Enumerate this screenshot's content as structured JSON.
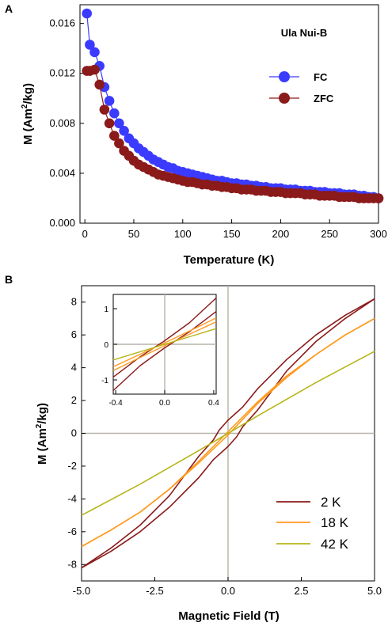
{
  "chart_data": [
    {
      "type": "scatter",
      "panel_label": "A",
      "title": "Ula Nui-B",
      "xlabel": "Temperature (K)",
      "ylabel_main": "M (Am",
      "ylabel_sup": "2",
      "ylabel_end": "/kg)",
      "xlim": [
        -5,
        300
      ],
      "ylim": [
        0,
        0.0175
      ],
      "xticks": [
        "0",
        "50",
        "100",
        "150",
        "200",
        "250",
        "300"
      ],
      "yticks": [
        "0.000",
        "0.004",
        "0.008",
        "0.012",
        "0.016"
      ],
      "grid": false,
      "legend_position": "right",
      "series": [
        {
          "name": "FC",
          "color": "#3b3bff",
          "x": [
            2,
            5,
            10,
            15,
            20,
            25,
            30,
            35,
            40,
            45,
            50,
            55,
            60,
            65,
            70,
            75,
            80,
            85,
            90,
            95,
            100,
            105,
            110,
            115,
            120,
            125,
            130,
            135,
            140,
            145,
            150,
            155,
            160,
            165,
            170,
            175,
            180,
            185,
            190,
            195,
            200,
            205,
            210,
            215,
            220,
            225,
            230,
            235,
            240,
            245,
            250,
            255,
            260,
            265,
            270,
            275,
            280,
            285,
            290,
            295,
            300
          ],
          "y": [
            0.0168,
            0.0143,
            0.0137,
            0.0126,
            0.0109,
            0.0098,
            0.0088,
            0.008,
            0.0074,
            0.0068,
            0.0064,
            0.006,
            0.0057,
            0.0054,
            0.0051,
            0.0049,
            0.0047,
            0.0045,
            0.0044,
            0.0042,
            0.0041,
            0.004,
            0.0039,
            0.0038,
            0.0037,
            0.0036,
            0.0035,
            0.0034,
            0.0034,
            0.0033,
            0.0032,
            0.0032,
            0.0031,
            0.0031,
            0.003,
            0.003,
            0.0029,
            0.0029,
            0.0028,
            0.0028,
            0.0028,
            0.0027,
            0.0027,
            0.0027,
            0.0026,
            0.0026,
            0.0026,
            0.0025,
            0.0025,
            0.0025,
            0.0024,
            0.0024,
            0.0024,
            0.0023,
            0.0023,
            0.0023,
            0.0022,
            0.0022,
            0.0021,
            0.0021,
            0.002
          ]
        },
        {
          "name": "ZFC",
          "color": "#8b1a1a",
          "x": [
            2,
            5,
            10,
            15,
            20,
            25,
            30,
            35,
            40,
            45,
            50,
            55,
            60,
            65,
            70,
            75,
            80,
            85,
            90,
            95,
            100,
            105,
            110,
            115,
            120,
            125,
            130,
            135,
            140,
            145,
            150,
            155,
            160,
            165,
            170,
            175,
            180,
            185,
            190,
            195,
            200,
            205,
            210,
            215,
            220,
            225,
            230,
            235,
            240,
            245,
            250,
            255,
            260,
            265,
            270,
            275,
            280,
            285,
            290,
            295,
            300
          ],
          "y": [
            0.0122,
            0.0122,
            0.0123,
            0.0111,
            0.0091,
            0.008,
            0.007,
            0.0064,
            0.0058,
            0.0054,
            0.005,
            0.0047,
            0.0045,
            0.0043,
            0.0041,
            0.0039,
            0.0038,
            0.0037,
            0.0036,
            0.0035,
            0.0034,
            0.0033,
            0.0033,
            0.0032,
            0.0031,
            0.0031,
            0.003,
            0.003,
            0.0029,
            0.0029,
            0.0028,
            0.0028,
            0.0027,
            0.0027,
            0.0027,
            0.0026,
            0.0026,
            0.0026,
            0.0025,
            0.0025,
            0.0025,
            0.0024,
            0.0024,
            0.0024,
            0.0024,
            0.0023,
            0.0023,
            0.0023,
            0.0022,
            0.0022,
            0.0022,
            0.0022,
            0.0021,
            0.0021,
            0.0021,
            0.0021,
            0.002,
            0.002,
            0.002,
            0.002,
            0.002
          ]
        }
      ]
    },
    {
      "type": "line",
      "panel_label": "B",
      "xlabel": "Magnetic Field (T)",
      "ylabel_main": "M (Am",
      "ylabel_sup": "2",
      "ylabel_end": "/kg)",
      "xlim": [
        -5,
        5
      ],
      "ylim": [
        -9,
        9
      ],
      "xticks": [
        "-5.0",
        "-2.5",
        "0.0",
        "2.5",
        "5.0"
      ],
      "xtick_values": [
        -5,
        -2.5,
        0,
        2.5,
        5
      ],
      "yticks": [
        "-8",
        "-6",
        "-4",
        "-2",
        "0",
        "2",
        "4",
        "6",
        "8"
      ],
      "ytick_values": [
        -8,
        -6,
        -4,
        -2,
        0,
        2,
        4,
        6,
        8
      ],
      "legend_position": "bottom-right",
      "series": [
        {
          "name": "2 K",
          "color": "#8b1a1a",
          "branches": [
            {
              "x": [
                5,
                4,
                3,
                2,
                1,
                0.5,
                0,
                -0.3,
                -0.5,
                -1,
                -2,
                -3,
                -4,
                -5
              ],
              "y": [
                8.2,
                7.2,
                6.0,
                4.5,
                2.7,
                1.6,
                0.8,
                0.2,
                -0.4,
                -1.4,
                -3.8,
                -5.6,
                -7.0,
                -8.2
              ]
            },
            {
              "x": [
                -5,
                -4,
                -3,
                -2,
                -1,
                -0.5,
                0,
                0.3,
                0.5,
                1,
                2,
                3,
                4,
                5
              ],
              "y": [
                -8.2,
                -7.2,
                -6.0,
                -4.5,
                -2.7,
                -1.6,
                -0.8,
                -0.2,
                0.4,
                1.4,
                3.8,
                5.6,
                7.0,
                8.2
              ]
            }
          ]
        },
        {
          "name": "18 K",
          "color": "#ff9a1f",
          "branches": [
            {
              "x": [
                5,
                4,
                3,
                2,
                1,
                0,
                -1,
                -2,
                -3,
                -4,
                -5
              ],
              "y": [
                7.0,
                6.0,
                4.8,
                3.5,
                1.9,
                0.1,
                -1.7,
                -3.4,
                -4.8,
                -5.9,
                -6.9
              ]
            },
            {
              "x": [
                -5,
                -4,
                -3,
                -2,
                -1,
                0,
                1,
                2,
                3,
                4,
                5
              ],
              "y": [
                -6.9,
                -5.9,
                -4.8,
                -3.4,
                -1.8,
                -0.1,
                1.8,
                3.4,
                4.8,
                6.0,
                7.0
              ]
            }
          ]
        },
        {
          "name": "42 K",
          "color": "#b5b51a",
          "branches": [
            {
              "x": [
                -5,
                -3,
                -1,
                0,
                1,
                3,
                5
              ],
              "y": [
                -5.0,
                -3.1,
                -1.05,
                0,
                1.05,
                3.1,
                5.0
              ]
            }
          ]
        }
      ],
      "inset": {
        "xlim": [
          -0.42,
          0.42
        ],
        "ylim": [
          -1.4,
          1.4
        ],
        "xticks": [
          "-0.4",
          "0.0",
          "0.4"
        ],
        "xtick_values": [
          -0.4,
          0,
          0.4
        ],
        "yticks": [
          "-1",
          "0",
          "1"
        ],
        "ytick_values": [
          -1,
          0,
          1
        ],
        "series": [
          {
            "name": "2 K",
            "color": "#8b1a1a",
            "branches": [
              {
                "x": [
                  -0.42,
                  -0.2,
                  0,
                  0.2,
                  0.42
                ],
                "y": [
                  -0.92,
                  -0.35,
                  0.1,
                  0.6,
                  1.3
                ]
              },
              {
                "x": [
                  -0.42,
                  -0.2,
                  0,
                  0.2,
                  0.42
                ],
                "y": [
                  -1.3,
                  -0.6,
                  -0.1,
                  0.35,
                  0.92
                ]
              }
            ]
          },
          {
            "name": "18 K",
            "color": "#ff9a1f",
            "branches": [
              {
                "x": [
                  -0.42,
                  -0.2,
                  0,
                  0.2,
                  0.42
                ],
                "y": [
                  -0.63,
                  -0.28,
                  0.04,
                  0.37,
                  0.74
                ]
              },
              {
                "x": [
                  -0.42,
                  -0.2,
                  0,
                  0.2,
                  0.42
                ],
                "y": [
                  -0.74,
                  -0.37,
                  -0.04,
                  0.28,
                  0.63
                ]
              }
            ]
          },
          {
            "name": "42 K",
            "color": "#b5b51a",
            "branches": [
              {
                "x": [
                  -0.42,
                  0.42
                ],
                "y": [
                  -0.44,
                  0.44
                ]
              }
            ]
          }
        ]
      }
    }
  ]
}
